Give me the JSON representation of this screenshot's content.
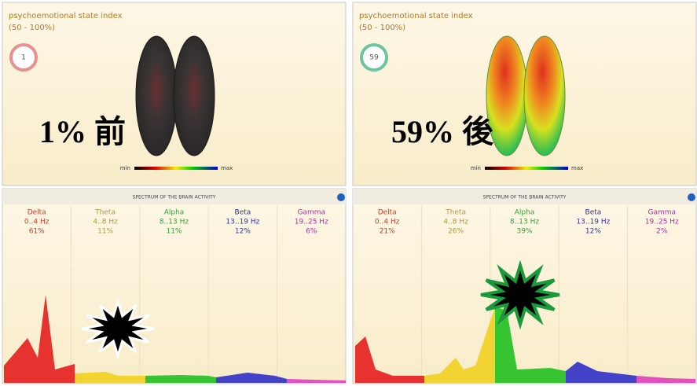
{
  "state_panels": [
    {
      "title": "psychoemotional state index",
      "range": "(50 - 100%)",
      "gauge": "1",
      "overlay": "1% 前",
      "legend_min": "min",
      "legend_max": "max"
    },
    {
      "title": "psychoemotional state index",
      "range": "(50 - 100%)",
      "gauge": "59",
      "overlay": "59% 後",
      "legend_min": "min",
      "legend_max": "max"
    }
  ],
  "spectrum_panels": [
    {
      "title": "SPECTRUM OF THE BRAIN ACTIVITY",
      "bands": [
        {
          "name": "Delta",
          "range": "0..4 Hz",
          "percent": "61%"
        },
        {
          "name": "Theta",
          "range": "4..8 Hz",
          "percent": "11%"
        },
        {
          "name": "Alpha",
          "range": "8..13 Hz",
          "percent": "11%"
        },
        {
          "name": "Beta",
          "range": "13..19 Hz",
          "percent": "12%"
        },
        {
          "name": "Gamma",
          "range": "19..25 Hz",
          "percent": "6%"
        }
      ]
    },
    {
      "title": "SPECTRUM OF THE BRAIN ACTIVITY",
      "bands": [
        {
          "name": "Delta",
          "range": "0..4 Hz",
          "percent": "21%"
        },
        {
          "name": "Theta",
          "range": "4..8 Hz",
          "percent": "26%"
        },
        {
          "name": "Alpha",
          "range": "8..13 Hz",
          "percent": "39%"
        },
        {
          "name": "Beta",
          "range": "13..19 Hz",
          "percent": "12%"
        },
        {
          "name": "Gamma",
          "range": "19..25 Hz",
          "percent": "2%"
        }
      ]
    }
  ]
}
